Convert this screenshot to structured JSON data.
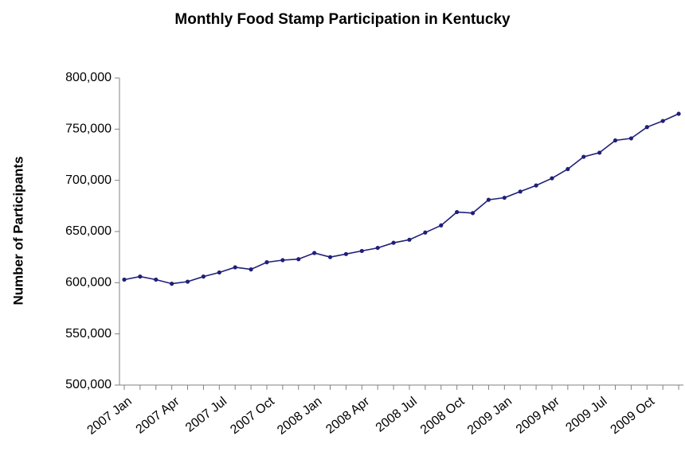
{
  "chart_data": {
    "type": "line",
    "title": "Monthly Food Stamp Participation in Kentucky",
    "xlabel": "",
    "ylabel": "Number of Participants",
    "ylim": [
      500000,
      800000
    ],
    "y_ticks": [
      "500,000",
      "550,000",
      "600,000",
      "650,000",
      "700,000",
      "750,000",
      "800,000"
    ],
    "y_tick_values": [
      500000,
      550000,
      600000,
      650000,
      700000,
      750000,
      800000
    ],
    "x_tick_labels": [
      "2007 Jan",
      "2007 Apr",
      "2007 Jul",
      "2007 Oct",
      "2008 Jan",
      "2008 Apr",
      "2008 Jul",
      "2008 Oct",
      "2009 Jan",
      "2009 Apr",
      "2009 Jul",
      "2009 Oct"
    ],
    "x": [
      "2007-01",
      "2007-02",
      "2007-03",
      "2007-04",
      "2007-05",
      "2007-06",
      "2007-07",
      "2007-08",
      "2007-09",
      "2007-10",
      "2007-11",
      "2007-12",
      "2008-01",
      "2008-02",
      "2008-03",
      "2008-04",
      "2008-05",
      "2008-06",
      "2008-07",
      "2008-08",
      "2008-09",
      "2008-10",
      "2008-11",
      "2008-12",
      "2009-01",
      "2009-02",
      "2009-03",
      "2009-04",
      "2009-05",
      "2009-06",
      "2009-07",
      "2009-08",
      "2009-09",
      "2009-10",
      "2009-11",
      "2009-12"
    ],
    "series": [
      {
        "values": [
          603000,
          606000,
          603000,
          599000,
          601000,
          606000,
          610000,
          615000,
          613000,
          620000,
          622000,
          623000,
          629000,
          625000,
          628000,
          631000,
          634000,
          639000,
          642000,
          649000,
          656000,
          669000,
          668000,
          681000,
          683000,
          689000,
          695000,
          702000,
          711000,
          723000,
          727000,
          739000,
          741000,
          752000,
          758000,
          765000
        ],
        "color": "#1f1f7a"
      }
    ],
    "grid": false,
    "legend": "none"
  }
}
